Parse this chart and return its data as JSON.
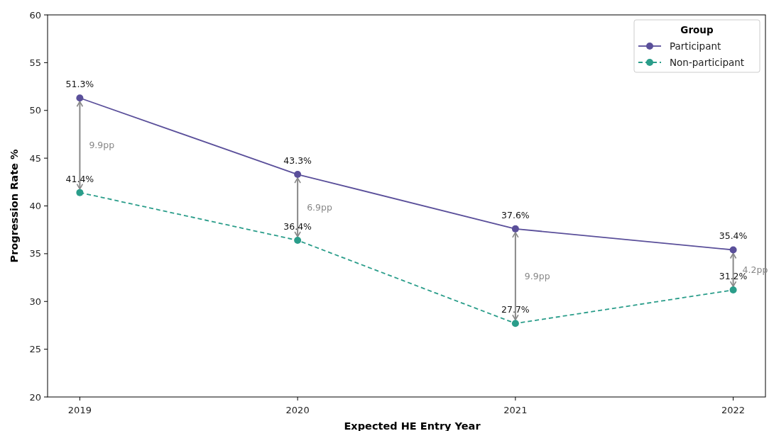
{
  "chart_data": {
    "type": "line",
    "xlabel": "Expected HE Entry Year",
    "ylabel": "Progression Rate %",
    "legend_title": "Group",
    "legend": "top right",
    "marker": "circle",
    "categories": [
      "2019",
      "2020",
      "2021",
      "2022"
    ],
    "ylim": [
      20,
      60
    ],
    "yticks": [
      20,
      25,
      30,
      35,
      40,
      45,
      50,
      55,
      60
    ],
    "grid": false,
    "series": [
      {
        "name": "Participant",
        "color": "#5a4f9a",
        "line_style": "solid",
        "values": [
          51.3,
          43.3,
          37.6,
          35.4
        ],
        "value_labels": [
          "51.3%",
          "43.3%",
          "37.6%",
          "35.4%"
        ]
      },
      {
        "name": "Non-participant",
        "color": "#2a9d8a",
        "line_style": "dashed",
        "values": [
          41.4,
          36.4,
          27.7,
          31.2
        ],
        "value_labels": [
          "41.4%",
          "36.4%",
          "27.7%",
          "31.2%"
        ]
      }
    ],
    "annotations": [
      "9.9pp",
      "6.9pp",
      "9.9pp",
      "4.2pp"
    ]
  }
}
